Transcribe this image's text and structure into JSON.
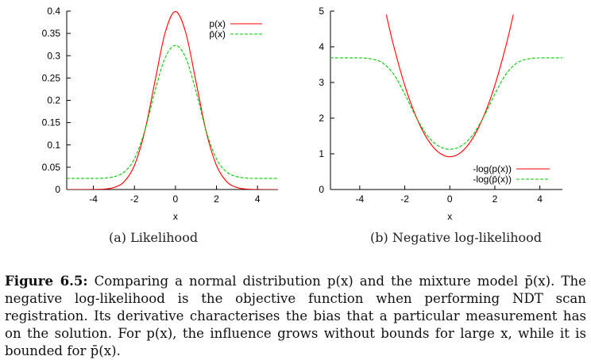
{
  "chart_data": [
    {
      "type": "line",
      "xlabel": "x",
      "ylabel": "",
      "xlim": [
        -5.3,
        5
      ],
      "ylim": [
        0,
        0.4
      ],
      "xticks": [
        -4,
        -2,
        0,
        2,
        4
      ],
      "yticks": [
        0,
        0.05,
        0.1,
        0.15,
        0.2,
        0.25,
        0.3,
        0.35,
        0.4
      ],
      "xtick_labels": [
        "-4",
        "-2",
        "0",
        "2",
        "4"
      ],
      "ytick_labels": [
        "0",
        "0.05",
        "0.1",
        "0.15",
        "0.2",
        "0.25",
        "0.3",
        "0.35",
        "0.4"
      ],
      "grid": false,
      "legend_position": "top-right",
      "series": [
        {
          "name": "p(x)",
          "color": "#ff0000",
          "dash": "solid",
          "x": [
            -5.3,
            -4,
            -3.5,
            -3,
            -2.5,
            -2,
            -1.5,
            -1,
            -0.5,
            0,
            0.5,
            1,
            1.5,
            2,
            2.5,
            3,
            3.5,
            4,
            5
          ],
          "y": [
            0,
            0.0001,
            0.0009,
            0.0044,
            0.0175,
            0.054,
            0.1295,
            0.242,
            0.352,
            0.399,
            0.352,
            0.242,
            0.1295,
            0.054,
            0.0175,
            0.0044,
            0.0009,
            0.0001,
            0
          ]
        },
        {
          "name": "p̄(x)",
          "color": "#00cc00",
          "dash": "dashed",
          "x": [
            -5.3,
            -4,
            -3.5,
            -3,
            -2.5,
            -2,
            -1.5,
            -1,
            -0.5,
            0,
            0.5,
            1,
            1.5,
            2,
            2.5,
            3,
            3.5,
            4,
            5
          ],
          "y": [
            0.025,
            0.025,
            0.0257,
            0.0286,
            0.0392,
            0.0688,
            0.131,
            0.2205,
            0.2954,
            0.3232,
            0.2954,
            0.2205,
            0.131,
            0.0688,
            0.0392,
            0.0286,
            0.0257,
            0.025,
            0.025
          ]
        }
      ]
    },
    {
      "type": "line",
      "xlabel": "x",
      "ylabel": "",
      "xlim": [
        -5.3,
        5
      ],
      "ylim": [
        0,
        5
      ],
      "xticks": [
        -4,
        -2,
        0,
        2,
        4
      ],
      "yticks": [
        0,
        1,
        2,
        3,
        4,
        5
      ],
      "xtick_labels": [
        "-4",
        "-2",
        "0",
        "2",
        "4"
      ],
      "ytick_labels": [
        "0",
        "1",
        "2",
        "3",
        "4",
        "5"
      ],
      "grid": false,
      "legend_position": "bottom-right",
      "series": [
        {
          "name": "-log(p(x))",
          "color": "#ff0000",
          "dash": "solid",
          "x": [
            -2.82,
            -2.5,
            -2,
            -1.5,
            -1,
            -0.5,
            0,
            0.5,
            1,
            1.5,
            2,
            2.5,
            2.82
          ],
          "y": [
            4.9,
            4.044,
            2.919,
            2.044,
            1.419,
            1.044,
            0.919,
            1.044,
            1.419,
            2.044,
            2.919,
            4.044,
            4.9
          ]
        },
        {
          "name": "-log(p̄(x))",
          "color": "#00cc00",
          "dash": "dashed",
          "x": [
            -5.3,
            -4,
            -3.5,
            -3,
            -2.5,
            -2,
            -1.5,
            -1,
            -0.5,
            0,
            0.5,
            1,
            1.5,
            2,
            2.5,
            3,
            3.5,
            4,
            5
          ],
          "y": [
            3.69,
            3.689,
            3.661,
            3.554,
            3.239,
            2.676,
            2.033,
            1.512,
            1.219,
            1.129,
            1.219,
            1.512,
            2.033,
            2.676,
            3.239,
            3.554,
            3.661,
            3.689,
            3.69
          ]
        }
      ]
    }
  ],
  "subcaptions": {
    "a": "(a) Likelihood",
    "b": "(b) Negative log-likelihood"
  },
  "caption": {
    "label": "Figure 6.5:",
    "text": "Comparing a normal distribution p(x) and the mixture model p̄(x). The negative log-likelihood is the objective function when performing NDT scan registration. Its derivative characterises the bias that a particular measurement has on the solution. For p(x), the influence grows without bounds for large x, while it is bounded for p̄(x)."
  }
}
